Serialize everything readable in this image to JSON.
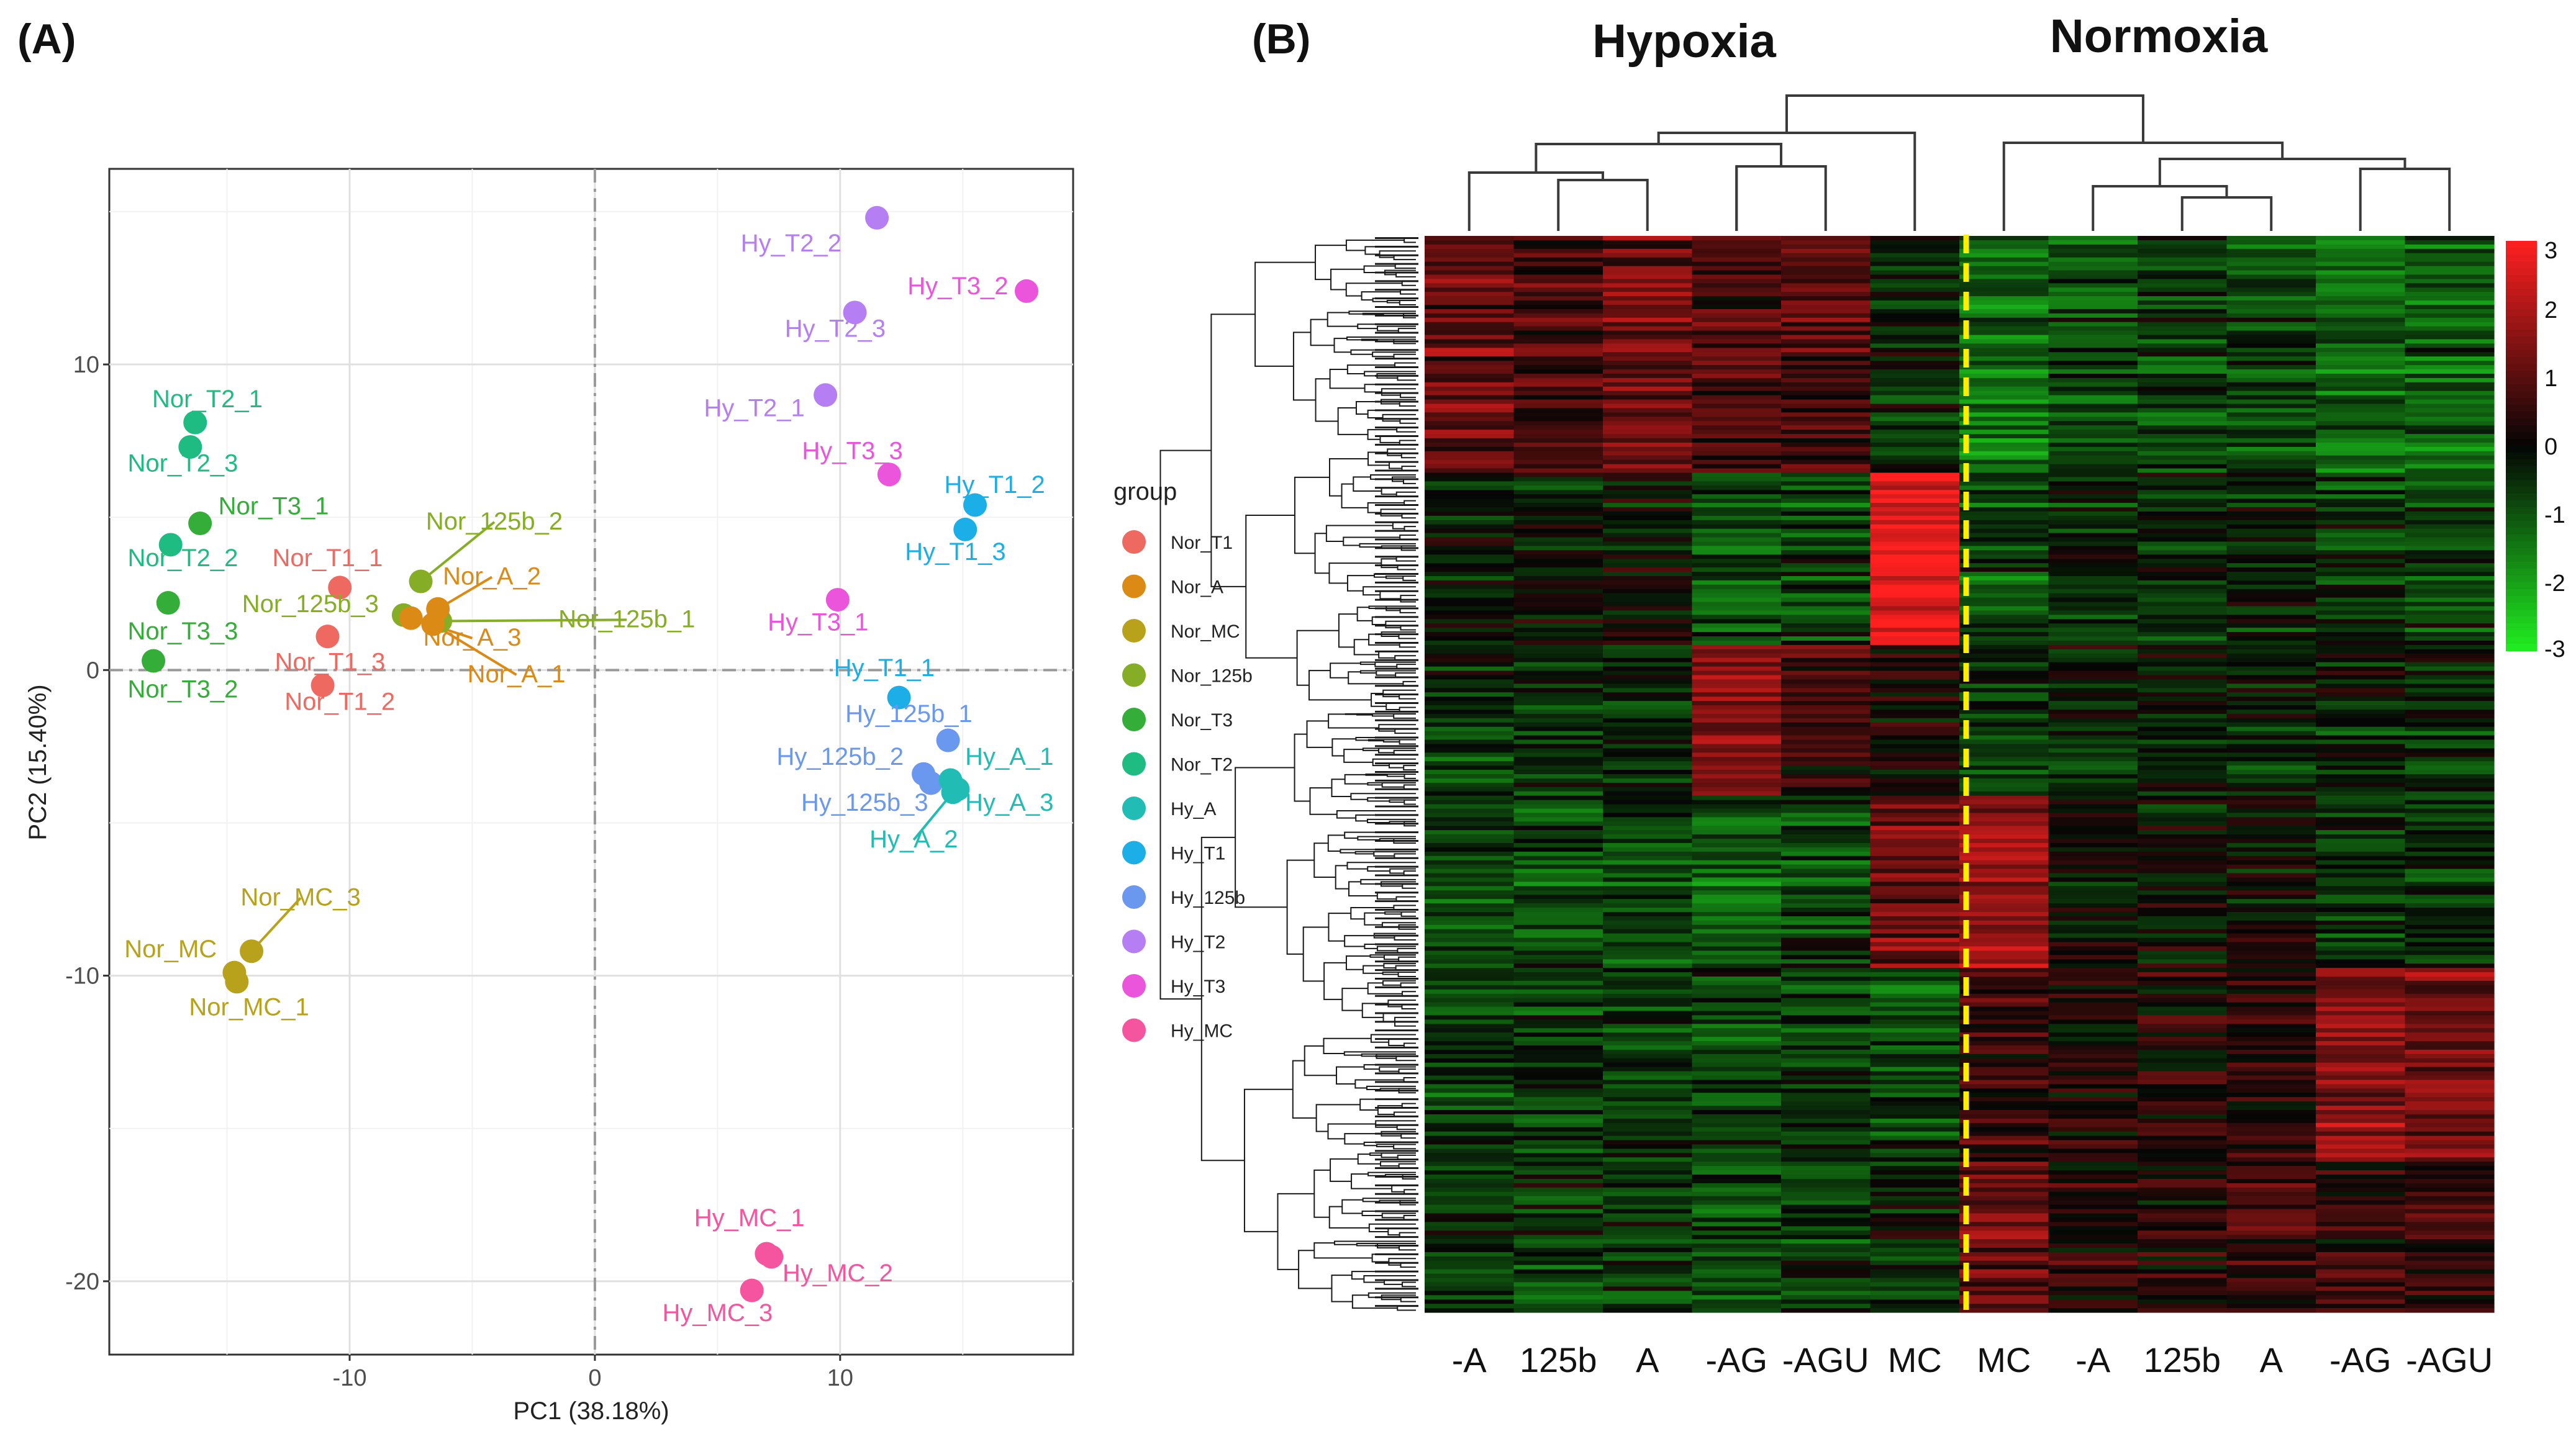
{
  "colors": {
    "Nor_T1": "#ee6a61",
    "Nor_A": "#db8a16",
    "Nor_MC": "#b9a21b",
    "Nor_125b": "#85ad25",
    "Nor_T3": "#34ad39",
    "Nor_T2": "#1ebc83",
    "Hy_A": "#21bcb4",
    "Hy_T1": "#1caee6",
    "Hy_125b": "#6a98ee",
    "Hy_T2": "#b57ef3",
    "Hy_T3": "#ea55dc",
    "Hy_MC": "#f5559f",
    "heat_high": "#ff2020",
    "heat_mid": "#050505",
    "heat_low": "#20ee20",
    "divider": "#ffee00"
  },
  "chart_data": [
    {
      "panel_label": "(A)",
      "type": "scatter",
      "title": "",
      "xlabel": "PC1 (38.18%)",
      "ylabel": "PC2 (15.40%)",
      "xlim": [
        -19.8,
        19.5
      ],
      "ylim": [
        -22.4,
        16.4
      ],
      "xticks": [
        -10,
        0,
        10
      ],
      "yticks": [
        -20,
        -10,
        0,
        10
      ],
      "xtick_labels": [
        "-10",
        "0",
        "10"
      ],
      "ytick_labels": [
        "-20",
        "-10",
        "0",
        "10"
      ],
      "grid": true,
      "reference_lines": {
        "x": 0,
        "y": 0
      },
      "legend": {
        "title": "group",
        "placement": "right",
        "entries": [
          "Nor_T1",
          "Nor_A",
          "Nor_MC",
          "Nor_125b",
          "Nor_T3",
          "Nor_T2",
          "Hy_A",
          "Hy_T1",
          "Hy_125b",
          "Hy_T2",
          "Hy_T3",
          "Hy_MC"
        ]
      },
      "points": [
        {
          "label": "Nor_T2_1",
          "group": "Nor_T2",
          "x": -16.3,
          "y": 8.1,
          "lx": -15.8,
          "ly": 8.6,
          "leader": false
        },
        {
          "label": "Nor_T2_3",
          "group": "Nor_T2",
          "x": -16.5,
          "y": 7.3,
          "lx": -16.8,
          "ly": 6.5,
          "leader": false
        },
        {
          "label": "Nor_T2_2",
          "group": "Nor_T2",
          "x": -17.3,
          "y": 4.1,
          "lx": -16.8,
          "ly": 3.4,
          "leader": false
        },
        {
          "label": "Nor_T3_1",
          "group": "Nor_T3",
          "x": -16.1,
          "y": 4.8,
          "lx": -13.1,
          "ly": 5.1,
          "leader": false
        },
        {
          "label": "Nor_T3_3",
          "group": "Nor_T3",
          "x": -17.4,
          "y": 2.2,
          "lx": -16.8,
          "ly": 1.0,
          "leader": false
        },
        {
          "label": "Nor_T3_2",
          "group": "Nor_T3",
          "x": -18.0,
          "y": 0.3,
          "lx": -16.8,
          "ly": -0.9,
          "leader": false
        },
        {
          "label": "Nor_T1_1",
          "group": "Nor_T1",
          "x": -10.4,
          "y": 2.7,
          "lx": -10.9,
          "ly": 3.4,
          "leader": false
        },
        {
          "label": "Nor_T1_3",
          "group": "Nor_T1",
          "x": -10.9,
          "y": 1.1,
          "lx": -10.8,
          "ly": 0.0,
          "leader": false
        },
        {
          "label": "Nor_T1_2",
          "group": "Nor_T1",
          "x": -11.1,
          "y": -0.5,
          "lx": -10.4,
          "ly": -1.3,
          "leader": false
        },
        {
          "label": "Nor_125b_2",
          "group": "Nor_125b",
          "x": -7.1,
          "y": 2.9,
          "lx": -4.1,
          "ly": 4.6,
          "leader": true
        },
        {
          "label": "Nor_125b_3",
          "group": "Nor_125b",
          "x": -7.8,
          "y": 1.8,
          "lx": -11.6,
          "ly": 1.9,
          "leader": false
        },
        {
          "label": "Nor_125b_1",
          "group": "Nor_125b",
          "x": -6.3,
          "y": 1.6,
          "lx": 1.3,
          "ly": 1.4,
          "leader": true
        },
        {
          "label": "Nor_A_2",
          "group": "Nor_A",
          "x": -6.4,
          "y": 2.0,
          "lx": -4.2,
          "ly": 2.8,
          "leader": true
        },
        {
          "label": "Nor_A_3",
          "group": "Nor_A",
          "x": -7.5,
          "y": 1.7,
          "lx": -5.0,
          "ly": 0.8,
          "leader": true
        },
        {
          "label": "Nor_A_1",
          "group": "Nor_A",
          "x": -6.6,
          "y": 1.5,
          "lx": -3.2,
          "ly": -0.4,
          "leader": true
        },
        {
          "label": "Nor_MC_3",
          "group": "Nor_MC",
          "x": -14.0,
          "y": -9.2,
          "lx": -12.0,
          "ly": -7.7,
          "leader": true
        },
        {
          "label": "Nor_MC",
          "group": "Nor_MC",
          "x": -14.7,
          "y": -9.9,
          "lx": -17.3,
          "ly": -9.4,
          "leader": false
        },
        {
          "label": "Nor_MC_1",
          "group": "Nor_MC",
          "x": -14.6,
          "y": -10.2,
          "lx": -14.1,
          "ly": -11.3,
          "leader": false
        },
        {
          "label": "Hy_T2_2",
          "group": "Hy_T2",
          "x": 11.5,
          "y": 14.8,
          "lx": 8.0,
          "ly": 13.7,
          "leader": false
        },
        {
          "label": "Hy_T2_3",
          "group": "Hy_T2",
          "x": 10.6,
          "y": 11.7,
          "lx": 9.8,
          "ly": 10.9,
          "leader": false
        },
        {
          "label": "Hy_T2_1",
          "group": "Hy_T2",
          "x": 9.4,
          "y": 9.0,
          "lx": 6.5,
          "ly": 8.3,
          "leader": false
        },
        {
          "label": "Hy_T3_2",
          "group": "Hy_T3",
          "x": 17.6,
          "y": 12.4,
          "lx": 14.8,
          "ly": 12.3,
          "leader": false
        },
        {
          "label": "Hy_T3_3",
          "group": "Hy_T3",
          "x": 12.0,
          "y": 6.4,
          "lx": 10.5,
          "ly": 6.9,
          "leader": false
        },
        {
          "label": "Hy_T3_1",
          "group": "Hy_T3",
          "x": 9.9,
          "y": 2.3,
          "lx": 9.1,
          "ly": 1.3,
          "leader": false
        },
        {
          "label": "Hy_T1_2",
          "group": "Hy_T1",
          "x": 15.5,
          "y": 5.4,
          "lx": 16.3,
          "ly": 5.8,
          "leader": false
        },
        {
          "label": "Hy_T1_3",
          "group": "Hy_T1",
          "x": 15.1,
          "y": 4.6,
          "lx": 14.7,
          "ly": 3.6,
          "leader": false
        },
        {
          "label": "Hy_T1_1",
          "group": "Hy_T1",
          "x": 12.4,
          "y": -0.9,
          "lx": 11.8,
          "ly": -0.2,
          "leader": false
        },
        {
          "label": "Hy_125b_1",
          "group": "Hy_125b",
          "x": 14.4,
          "y": -2.3,
          "lx": 12.8,
          "ly": -1.7,
          "leader": false
        },
        {
          "label": "Hy_125b_2",
          "group": "Hy_125b",
          "x": 13.4,
          "y": -3.4,
          "lx": 10.0,
          "ly": -3.1,
          "leader": false
        },
        {
          "label": "Hy_125b_3",
          "group": "Hy_125b",
          "x": 13.7,
          "y": -3.7,
          "lx": 11.0,
          "ly": -4.6,
          "leader": false
        },
        {
          "label": "Hy_A_1",
          "group": "Hy_A",
          "x": 14.5,
          "y": -3.6,
          "lx": 16.9,
          "ly": -3.1,
          "leader": false
        },
        {
          "label": "Hy_A_3",
          "group": "Hy_A",
          "x": 14.8,
          "y": -3.9,
          "lx": 16.9,
          "ly": -4.6,
          "leader": false
        },
        {
          "label": "Hy_A_2",
          "group": "Hy_A",
          "x": 14.6,
          "y": -4.0,
          "lx": 13.0,
          "ly": -5.8,
          "leader": true
        },
        {
          "label": "Hy_MC_1",
          "group": "Hy_MC",
          "x": 7.0,
          "y": -19.1,
          "lx": 6.3,
          "ly": -18.2,
          "leader": false
        },
        {
          "label": "Hy_MC_2",
          "group": "Hy_MC",
          "x": 7.2,
          "y": -19.2,
          "lx": 9.9,
          "ly": -20.0,
          "leader": false
        },
        {
          "label": "Hy_MC_3",
          "group": "Hy_MC",
          "x": 6.4,
          "y": -20.3,
          "lx": 5.0,
          "ly": -21.3,
          "leader": false
        }
      ]
    },
    {
      "panel_label": "(B)",
      "type": "heatmap",
      "group_labels": [
        "Hypoxia",
        "Normoxia"
      ],
      "columns": [
        "-A",
        "125b",
        "A",
        "-AG",
        "-AGU",
        "MC",
        "MC",
        "-A",
        "125b",
        "A",
        "-AG",
        "-AGU"
      ],
      "column_groups": [
        "Hypoxia",
        "Hypoxia",
        "Hypoxia",
        "Hypoxia",
        "Hypoxia",
        "Hypoxia",
        "Normoxia",
        "Normoxia",
        "Normoxia",
        "Normoxia",
        "Normoxia",
        "Normoxia"
      ],
      "color_scale": {
        "min": -3,
        "max": 3,
        "ticks": [
          3,
          2,
          1,
          0,
          -1,
          -2,
          -3
        ]
      },
      "row_count": 250,
      "column_cluster_profile": [
        {
          "from": 0.0,
          "to": 0.22,
          "values": [
            1.2,
            1.0,
            1.3,
            0.9,
            0.9,
            -0.4,
            -1.3,
            -0.8,
            -0.7,
            -0.7,
            -1.1,
            -1.1
          ]
        },
        {
          "from": 0.22,
          "to": 0.38,
          "values": [
            -0.2,
            -0.2,
            -0.1,
            -0.9,
            -0.7,
            2.6,
            -0.9,
            -0.4,
            -0.4,
            -0.3,
            -0.6,
            -0.6
          ]
        },
        {
          "from": 0.38,
          "to": 0.52,
          "values": [
            -0.5,
            -0.5,
            -0.5,
            1.5,
            0.6,
            0.2,
            -0.7,
            -0.3,
            -0.3,
            -0.3,
            -0.4,
            -0.4
          ]
        },
        {
          "from": 0.52,
          "to": 0.68,
          "values": [
            -0.8,
            -0.8,
            -0.8,
            -1.0,
            -0.8,
            1.2,
            1.8,
            0.0,
            -0.1,
            0.0,
            -0.6,
            -0.6
          ]
        },
        {
          "from": 0.68,
          "to": 0.86,
          "values": [
            -0.7,
            -0.7,
            -0.7,
            -0.8,
            -0.7,
            -0.8,
            0.6,
            0.2,
            0.3,
            0.4,
            1.6,
            1.3
          ]
        },
        {
          "from": 0.86,
          "to": 1.0,
          "values": [
            -0.6,
            -0.6,
            -0.6,
            -0.9,
            -0.6,
            -0.3,
            1.2,
            0.4,
            0.4,
            0.5,
            0.5,
            0.6
          ]
        }
      ]
    }
  ]
}
